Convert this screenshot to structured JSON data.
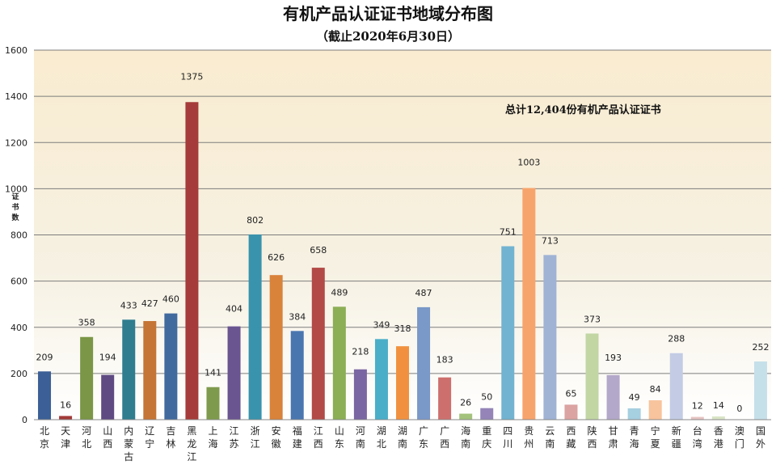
{
  "chart_data": {
    "type": "bar",
    "title": "有机产品认证证书地域分布图",
    "subtitle": "（截止2020年6月30日）",
    "ylabel": "证书数",
    "ylim": [
      0,
      1600
    ],
    "yticks": [
      0,
      200,
      400,
      600,
      800,
      1000,
      1200,
      1400,
      1600
    ],
    "annotation": "总计12,404份有机产品认证证书",
    "categories": [
      "北京",
      "天津",
      "河北",
      "山西",
      "内蒙古",
      "辽宁",
      "吉林",
      "黑龙江",
      "上海",
      "江苏",
      "浙江",
      "安徽",
      "福建",
      "江西",
      "山东",
      "河南",
      "湖北",
      "湖南",
      "广东",
      "广西",
      "海南",
      "重庆",
      "四川",
      "贵州",
      "云南",
      "西藏",
      "陕西",
      "甘肃",
      "青海",
      "宁夏",
      "新疆",
      "台湾",
      "香港",
      "澳门",
      "国外"
    ],
    "values": [
      209,
      16,
      358,
      194,
      433,
      427,
      460,
      1375,
      141,
      404,
      802,
      626,
      384,
      658,
      489,
      218,
      349,
      318,
      487,
      183,
      26,
      50,
      751,
      1003,
      713,
      65,
      373,
      193,
      49,
      84,
      288,
      12,
      14,
      0,
      252
    ],
    "colors": [
      "#3b5f96",
      "#a33a38",
      "#7a9646",
      "#5f4a82",
      "#2f7d8f",
      "#c57535",
      "#416a9e",
      "#a53b3a",
      "#7e9b4d",
      "#6a5591",
      "#3a93ad",
      "#d9823a",
      "#4a76b0",
      "#b34a47",
      "#8cae55",
      "#7a66a2",
      "#4aaec8",
      "#f1913f",
      "#7a98c8",
      "#cd706d",
      "#a3c27c",
      "#9484b8",
      "#72b3d1",
      "#f7a46c",
      "#a0b3d5",
      "#dba3a2",
      "#c2d6a4",
      "#b3a8c9",
      "#a6cfe0",
      "#f8c49d",
      "#c3cce4",
      "#e6c3c2",
      "#d9e4c6",
      "#d7d1e1",
      "#c6e0ea"
    ]
  }
}
